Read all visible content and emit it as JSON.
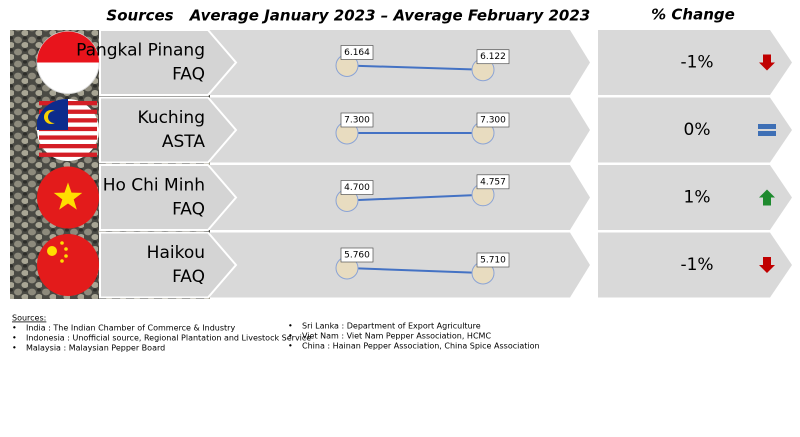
{
  "header": {
    "sources": "Sources",
    "period": "Average January 2023 – Average February 2023",
    "change": "% Change"
  },
  "rows": [
    {
      "market": "Pangkal Pinang",
      "grade": "FAQ",
      "jan": {
        "value": 6.164,
        "label": "6.164"
      },
      "feb": {
        "value": 6.122,
        "label": "6.122"
      },
      "change": {
        "value": -1,
        "label": "-1%"
      }
    },
    {
      "market": "Kuching",
      "grade": "ASTA",
      "jan": {
        "value": 7.3,
        "label": "7.300"
      },
      "feb": {
        "value": 7.3,
        "label": "7.300"
      },
      "change": {
        "value": 0,
        "label": "0%"
      }
    },
    {
      "market": "Ho Chi Minh",
      "grade": "FAQ",
      "jan": {
        "value": 4.7,
        "label": "4.700"
      },
      "feb": {
        "value": 4.757,
        "label": "4.757"
      },
      "change": {
        "value": 1,
        "label": "1%"
      }
    },
    {
      "market": "Haikou",
      "grade": "FAQ",
      "jan": {
        "value": 5.76,
        "label": "5.760"
      },
      "feb": {
        "value": 5.71,
        "label": "5.710"
      },
      "change": {
        "value": -1,
        "label": "-1%"
      }
    }
  ],
  "footnote": {
    "title": "Sources:",
    "left": [
      "India : The Indian Chamber of Commerce & Industry",
      "Indonesia : Unofficial source, Regional Plantation and Livestock Service",
      "Malaysia : Malaysian Pepper Board"
    ],
    "right": [
      "Sri Lanka : Department of Export Agriculture",
      "Viet Nam : Viet Nam Pepper Association, HCMC",
      "China : Hainan Pepper Association, China Spice Association"
    ]
  }
}
